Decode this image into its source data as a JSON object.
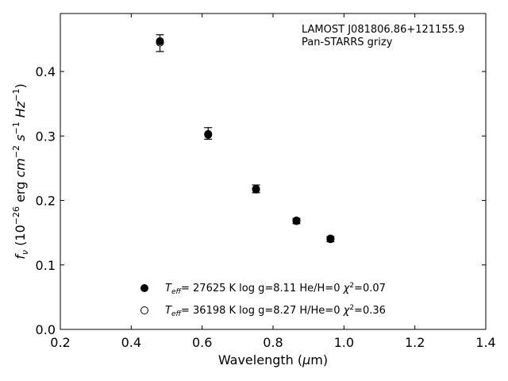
{
  "chart_data": {
    "type": "scatter",
    "annotation": [
      "LAMOST J081806.86+121155.9",
      "Pan-STARRS grizy"
    ],
    "xlim": [
      0.2,
      1.4
    ],
    "ylim": [
      0.0,
      0.49
    ],
    "xticks": [
      "0.2",
      "0.4",
      "0.6",
      "0.8",
      "1.0",
      "1.2",
      "1.4"
    ],
    "yticks": [
      "0.0",
      "0.1",
      "0.2",
      "0.3",
      "0.4"
    ],
    "grid": false,
    "legend_position": "bottom-center",
    "observed": {
      "x": [
        0.481,
        0.617,
        0.752,
        0.866,
        0.962
      ],
      "y": [
        0.444,
        0.304,
        0.218,
        0.168,
        0.14
      ],
      "err": [
        0.013,
        0.009,
        0.006,
        0.004,
        0.004
      ]
    },
    "series": [
      {
        "marker": "filled",
        "x": [
          0.481,
          0.617,
          0.752,
          0.866,
          0.962
        ],
        "y": [
          0.447,
          0.303,
          0.217,
          0.169,
          0.14
        ],
        "teff": "27625",
        "logg": "8.11",
        "comp": "He/H=0",
        "chi2": "=0.07"
      },
      {
        "marker": "open",
        "x": [
          0.481,
          0.617,
          0.752,
          0.866,
          0.962
        ],
        "y": [
          0.445,
          0.302,
          0.218,
          0.168,
          0.141
        ],
        "teff": "36198",
        "logg": "8.27",
        "comp": "H/He=0",
        "chi2": "=0.36"
      }
    ],
    "colors": {
      "markers": "#000000",
      "axes": "#000000"
    }
  }
}
